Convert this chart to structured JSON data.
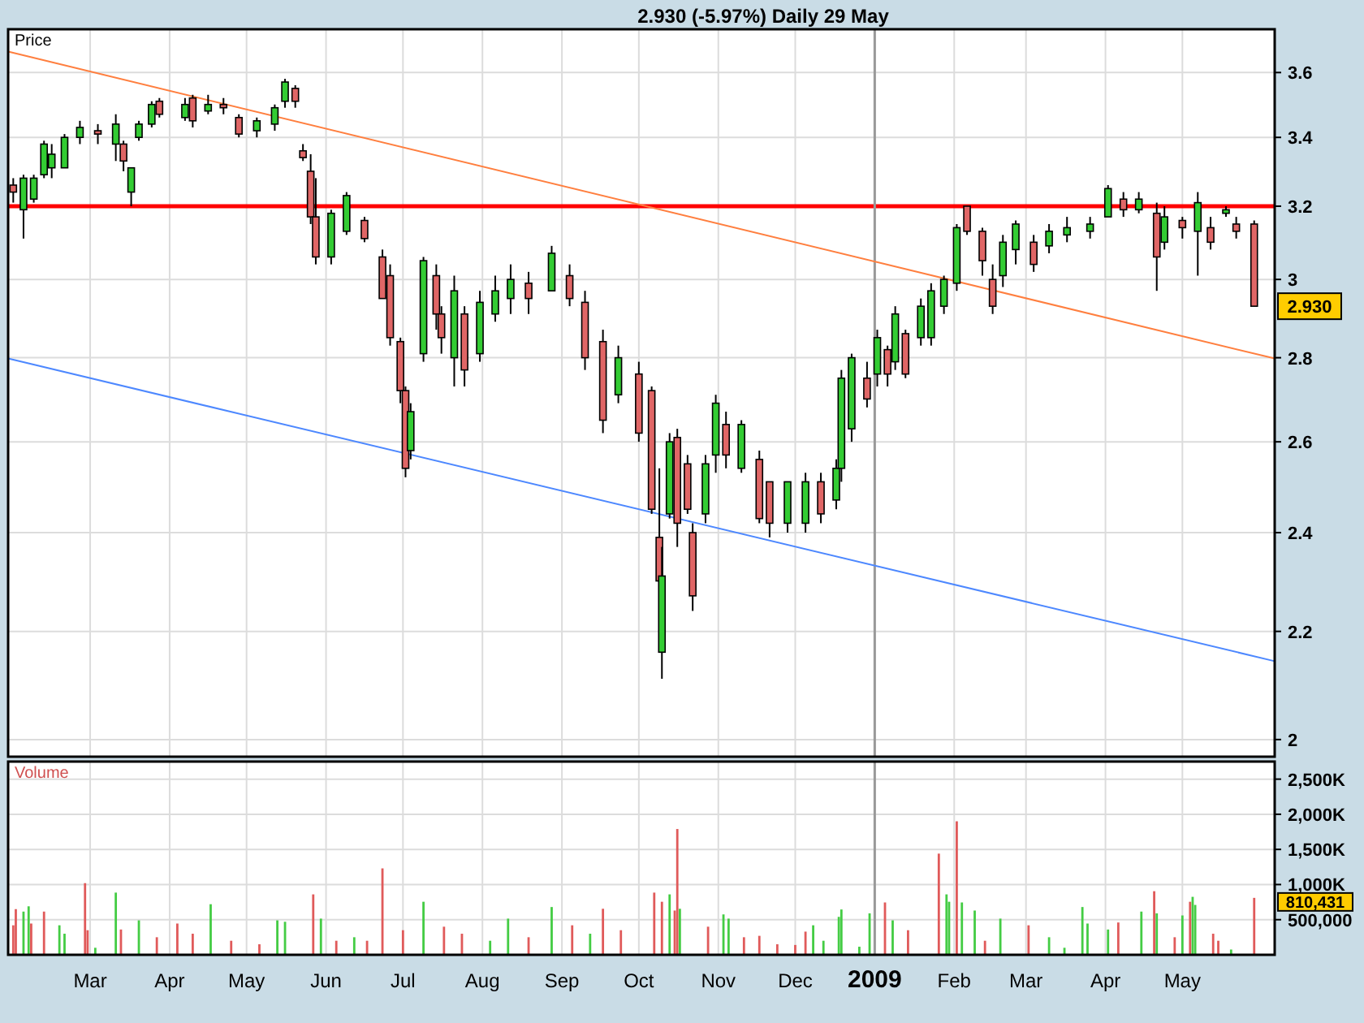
{
  "chart_data": [
    {
      "type": "candlestick",
      "title": "2.930 (-5.97%) Daily 29 May",
      "ylabel": "Price",
      "log": true,
      "grid": true,
      "tick_labels": "y",
      "xlim": [
        "2008-01-29",
        "2009-06-06"
      ],
      "xticks": [
        {
          "value": "2008-03-01",
          "label": null
        },
        {
          "value": "2008-04-01",
          "label": null
        },
        {
          "value": "2008-05-01",
          "label": null
        },
        {
          "value": "2008-06-01",
          "label": null
        },
        {
          "value": "2008-07-01",
          "label": null
        },
        {
          "value": "2008-08-01",
          "label": null
        },
        {
          "value": "2008-09-01",
          "label": null
        },
        {
          "value": "2008-10-01",
          "label": null
        },
        {
          "value": "2008-11-01",
          "label": null
        },
        {
          "value": "2008-12-01",
          "label": null
        },
        {
          "value": "2009-01-01",
          "label": null
        },
        {
          "value": "2009-02-01",
          "label": null
        },
        {
          "value": "2009-03-01",
          "label": null
        },
        {
          "value": "2009-04-01",
          "label": null
        },
        {
          "value": "2009-05-01",
          "label": null
        }
      ],
      "ylim": [
        1.97,
        3.74
      ],
      "yticks": [
        2,
        2.2,
        2.4,
        2.6,
        2.8,
        3,
        3.2,
        3.4,
        3.6
      ],
      "x": [
        "2008-01-31",
        "2008-02-04",
        "2008-02-08",
        "2008-02-12",
        "2008-02-15",
        "2008-02-20",
        "2008-02-26",
        "2008-03-04",
        "2008-03-11",
        "2008-03-14",
        "2008-03-17",
        "2008-03-20",
        "2008-03-25",
        "2008-03-28",
        "2008-04-07",
        "2008-04-10",
        "2008-04-16",
        "2008-04-22",
        "2008-04-28",
        "2008-05-05",
        "2008-05-12",
        "2008-05-16",
        "2008-05-20",
        "2008-05-23",
        "2008-05-26",
        "2008-05-28",
        "2008-06-03",
        "2008-06-09",
        "2008-06-16",
        "2008-06-23",
        "2008-06-26",
        "2008-06-30",
        "2008-07-02",
        "2008-07-04",
        "2008-07-09",
        "2008-07-14",
        "2008-07-16",
        "2008-07-21",
        "2008-07-25",
        "2008-07-31",
        "2008-08-06",
        "2008-08-12",
        "2008-08-19",
        "2008-08-28",
        "2008-09-04",
        "2008-09-10",
        "2008-09-17",
        "2008-09-23",
        "2008-10-01",
        "2008-10-06",
        "2008-10-09",
        "2008-10-10",
        "2008-10-13",
        "2008-10-16",
        "2008-10-20",
        "2008-10-22",
        "2008-10-27",
        "2008-10-31",
        "2008-11-04",
        "2008-11-10",
        "2008-11-17",
        "2008-11-21",
        "2008-11-28",
        "2008-12-05",
        "2008-12-11",
        "2008-12-17",
        "2008-12-19",
        "2008-12-23",
        "2008-12-29",
        "2009-01-02",
        "2009-01-06",
        "2009-01-09",
        "2009-01-13",
        "2009-01-19",
        "2009-01-23",
        "2009-01-28",
        "2009-02-02",
        "2009-02-06",
        "2009-02-12",
        "2009-02-16",
        "2009-02-20",
        "2009-02-25",
        "2009-03-04",
        "2009-03-10",
        "2009-03-17",
        "2009-03-26",
        "2009-04-02",
        "2009-04-08",
        "2009-04-14",
        "2009-04-21",
        "2009-04-24",
        "2009-05-01",
        "2009-05-07",
        "2009-05-12",
        "2009-05-18",
        "2009-05-22",
        "2009-05-29"
      ],
      "ohlc": [
        [
          3.26,
          3.28,
          3.21,
          3.24
        ],
        [
          3.19,
          3.29,
          3.11,
          3.28
        ],
        [
          3.22,
          3.29,
          3.21,
          3.28
        ],
        [
          3.29,
          3.39,
          3.28,
          3.38
        ],
        [
          3.31,
          3.38,
          3.28,
          3.35
        ],
        [
          3.31,
          3.41,
          3.31,
          3.4
        ],
        [
          3.4,
          3.45,
          3.38,
          3.43
        ],
        [
          3.42,
          3.44,
          3.38,
          3.41
        ],
        [
          3.38,
          3.47,
          3.33,
          3.44
        ],
        [
          3.38,
          3.39,
          3.3,
          3.33
        ],
        [
          3.24,
          3.31,
          3.2,
          3.31
        ],
        [
          3.4,
          3.45,
          3.39,
          3.44
        ],
        [
          3.44,
          3.51,
          3.43,
          3.5
        ],
        [
          3.51,
          3.52,
          3.46,
          3.47
        ],
        [
          3.46,
          3.52,
          3.45,
          3.5
        ],
        [
          3.52,
          3.53,
          3.43,
          3.45
        ],
        [
          3.48,
          3.53,
          3.47,
          3.5
        ],
        [
          3.5,
          3.52,
          3.47,
          3.49
        ],
        [
          3.46,
          3.47,
          3.4,
          3.41
        ],
        [
          3.42,
          3.46,
          3.4,
          3.45
        ],
        [
          3.44,
          3.5,
          3.42,
          3.49
        ],
        [
          3.51,
          3.58,
          3.49,
          3.57
        ],
        [
          3.55,
          3.56,
          3.49,
          3.51
        ],
        [
          3.36,
          3.38,
          3.33,
          3.34
        ],
        [
          3.3,
          3.35,
          3.15,
          3.17
        ],
        [
          3.17,
          3.28,
          3.04,
          3.06
        ],
        [
          3.06,
          3.19,
          3.04,
          3.18
        ],
        [
          3.13,
          3.24,
          3.12,
          3.23
        ],
        [
          3.16,
          3.17,
          3.1,
          3.11
        ],
        [
          3.06,
          3.08,
          2.95,
          2.95
        ],
        [
          3.01,
          3.04,
          2.83,
          2.85
        ],
        [
          2.84,
          2.85,
          2.69,
          2.72
        ],
        [
          2.72,
          2.73,
          2.52,
          2.54
        ],
        [
          2.58,
          2.69,
          2.56,
          2.67
        ],
        [
          2.81,
          3.06,
          2.79,
          3.05
        ],
        [
          3.01,
          3.04,
          2.87,
          2.91
        ],
        [
          2.91,
          2.93,
          2.81,
          2.85
        ],
        [
          2.8,
          3.01,
          2.73,
          2.97
        ],
        [
          2.91,
          2.93,
          2.73,
          2.77
        ],
        [
          2.81,
          2.97,
          2.79,
          2.94
        ],
        [
          2.91,
          3.01,
          2.89,
          2.97
        ],
        [
          2.95,
          3.04,
          2.91,
          3.0
        ],
        [
          2.99,
          3.02,
          2.91,
          2.95
        ],
        [
          2.97,
          3.09,
          2.97,
          3.07
        ],
        [
          3.01,
          3.04,
          2.93,
          2.95
        ],
        [
          2.94,
          2.97,
          2.77,
          2.8
        ],
        [
          2.84,
          2.87,
          2.62,
          2.65
        ],
        [
          2.71,
          2.83,
          2.69,
          2.8
        ],
        [
          2.76,
          2.79,
          2.6,
          2.62
        ],
        [
          2.72,
          2.73,
          2.44,
          2.45
        ],
        [
          2.39,
          2.54,
          2.25,
          2.3
        ],
        [
          2.16,
          2.37,
          2.11,
          2.31
        ],
        [
          2.44,
          2.62,
          2.43,
          2.6
        ],
        [
          2.61,
          2.63,
          2.37,
          2.42
        ],
        [
          2.55,
          2.57,
          2.44,
          2.45
        ],
        [
          2.4,
          2.42,
          2.24,
          2.27
        ],
        [
          2.44,
          2.57,
          2.42,
          2.55
        ],
        [
          2.57,
          2.71,
          2.53,
          2.69
        ],
        [
          2.64,
          2.67,
          2.54,
          2.57
        ],
        [
          2.54,
          2.65,
          2.53,
          2.64
        ],
        [
          2.56,
          2.58,
          2.42,
          2.43
        ],
        [
          2.51,
          2.51,
          2.39,
          2.42
        ],
        [
          2.42,
          2.51,
          2.4,
          2.51
        ],
        [
          2.42,
          2.53,
          2.4,
          2.51
        ],
        [
          2.51,
          2.53,
          2.42,
          2.44
        ],
        [
          2.47,
          2.56,
          2.45,
          2.54
        ],
        [
          2.54,
          2.77,
          2.51,
          2.75
        ],
        [
          2.63,
          2.81,
          2.6,
          2.8
        ],
        [
          2.75,
          2.79,
          2.68,
          2.7
        ],
        [
          2.76,
          2.87,
          2.73,
          2.85
        ],
        [
          2.82,
          2.83,
          2.73,
          2.76
        ],
        [
          2.79,
          2.93,
          2.77,
          2.91
        ],
        [
          2.86,
          2.87,
          2.75,
          2.76
        ],
        [
          2.85,
          2.95,
          2.83,
          2.93
        ],
        [
          2.85,
          2.99,
          2.83,
          2.97
        ],
        [
          2.93,
          3.01,
          2.91,
          3.0
        ],
        [
          2.99,
          3.15,
          2.97,
          3.14
        ],
        [
          3.2,
          3.2,
          3.12,
          3.13
        ],
        [
          3.13,
          3.14,
          3.01,
          3.05
        ],
        [
          3.0,
          3.04,
          2.91,
          2.93
        ],
        [
          3.01,
          3.12,
          2.98,
          3.1
        ],
        [
          3.08,
          3.16,
          3.04,
          3.15
        ],
        [
          3.1,
          3.12,
          3.02,
          3.04
        ],
        [
          3.09,
          3.15,
          3.07,
          3.13
        ],
        [
          3.12,
          3.17,
          3.1,
          3.14
        ],
        [
          3.13,
          3.17,
          3.11,
          3.15
        ],
        [
          3.17,
          3.26,
          3.17,
          3.25
        ],
        [
          3.22,
          3.24,
          3.17,
          3.19
        ],
        [
          3.19,
          3.24,
          3.18,
          3.22
        ],
        [
          3.18,
          3.21,
          2.97,
          3.06
        ],
        [
          3.1,
          3.2,
          3.08,
          3.17
        ],
        [
          3.16,
          3.17,
          3.11,
          3.14
        ],
        [
          3.13,
          3.24,
          3.01,
          3.21
        ],
        [
          3.14,
          3.17,
          3.08,
          3.1
        ],
        [
          3.18,
          3.2,
          3.17,
          3.19
        ],
        [
          3.15,
          3.17,
          3.11,
          3.13
        ],
        [
          3.15,
          3.16,
          2.93,
          2.93
        ]
      ],
      "series": [
        {
          "type": "line",
          "color": "#ff7f3f",
          "x": [
            "2008-01-29",
            "2009-06-06"
          ],
          "values": [
            3.667,
            2.798
          ]
        },
        {
          "type": "line",
          "color": "#4d88ff",
          "x": [
            "2008-01-29",
            "2009-06-06"
          ],
          "values": [
            2.798,
            2.143
          ]
        }
      ],
      "ref_lines": [
        {
          "axis": "y",
          "value": 3.2,
          "color": "#ff0000"
        },
        {
          "axis": "x",
          "value": "2009-01-01",
          "color": "#999999"
        }
      ],
      "annotations": [
        {
          "text": "2.930",
          "x": "2009-05-29",
          "y": 2.93
        }
      ]
    },
    {
      "type": "bar",
      "ylabel": "Volume",
      "grid": true,
      "xlim": [
        "2008-01-29",
        "2009-06-06"
      ],
      "xticks": [
        {
          "value": "2008-03-01",
          "label": "Mar"
        },
        {
          "value": "2008-04-01",
          "label": "Apr"
        },
        {
          "value": "2008-05-01",
          "label": "May"
        },
        {
          "value": "2008-06-01",
          "label": "Jun"
        },
        {
          "value": "2008-07-01",
          "label": "Jul"
        },
        {
          "value": "2008-08-01",
          "label": "Aug"
        },
        {
          "value": "2008-09-01",
          "label": "Sep"
        },
        {
          "value": "2008-10-01",
          "label": "Oct"
        },
        {
          "value": "2008-11-01",
          "label": "Nov"
        },
        {
          "value": "2008-12-01",
          "label": "Dec"
        },
        {
          "value": "2009-01-01",
          "label": "2009"
        },
        {
          "value": "2009-02-01",
          "label": "Feb"
        },
        {
          "value": "2009-03-01",
          "label": "Mar"
        },
        {
          "value": "2009-04-01",
          "label": "Apr"
        },
        {
          "value": "2009-05-01",
          "label": "May"
        }
      ],
      "ylim": [
        0,
        2750000
      ],
      "yticks": [
        {
          "value": 500000,
          "label": "500,000"
        },
        {
          "value": 1000000,
          "label": "1,000K"
        },
        {
          "value": 1500000,
          "label": "1,500K"
        },
        {
          "value": 2000000,
          "label": "2,000K"
        },
        {
          "value": 2500000,
          "label": "2,500K"
        }
      ],
      "x": [
        "2008-01-31",
        "2008-02-01",
        "2008-02-04",
        "2008-02-06",
        "2008-02-07",
        "2008-02-12",
        "2008-02-18",
        "2008-02-20",
        "2008-02-28",
        "2008-02-29",
        "2008-03-03",
        "2008-03-11",
        "2008-03-13",
        "2008-03-20",
        "2008-03-27",
        "2008-04-04",
        "2008-04-10",
        "2008-04-17",
        "2008-04-25",
        "2008-05-06",
        "2008-05-13",
        "2008-05-16",
        "2008-05-27",
        "2008-05-30",
        "2008-06-05",
        "2008-06-12",
        "2008-06-17",
        "2008-06-23",
        "2008-07-01",
        "2008-07-09",
        "2008-07-17",
        "2008-07-24",
        "2008-08-04",
        "2008-08-11",
        "2008-08-19",
        "2008-08-28",
        "2008-09-05",
        "2008-09-12",
        "2008-09-17",
        "2008-09-24",
        "2008-10-07",
        "2008-10-10",
        "2008-10-13",
        "2008-10-15",
        "2008-10-16",
        "2008-10-17",
        "2008-10-28",
        "2008-11-03",
        "2008-11-05",
        "2008-11-11",
        "2008-11-17",
        "2008-11-24",
        "2008-12-01",
        "2008-12-05",
        "2008-12-08",
        "2008-12-12",
        "2008-12-18",
        "2008-12-19",
        "2008-12-26",
        "2008-12-30",
        "2009-01-05",
        "2009-01-08",
        "2009-01-14",
        "2009-01-26",
        "2009-01-29",
        "2009-01-30",
        "2009-02-02",
        "2009-02-04",
        "2009-02-09",
        "2009-02-13",
        "2009-02-19",
        "2009-03-02",
        "2009-03-10",
        "2009-03-16",
        "2009-03-23",
        "2009-03-25",
        "2009-04-02",
        "2009-04-06",
        "2009-04-15",
        "2009-04-20",
        "2009-04-21",
        "2009-04-28",
        "2009-05-01",
        "2009-05-04",
        "2009-05-05",
        "2009-05-06",
        "2009-05-13",
        "2009-05-15",
        "2009-05-20",
        "2009-05-29"
      ],
      "values": [
        420000,
        650000,
        615000,
        690000,
        445000,
        615000,
        420000,
        300000,
        1020000,
        350000,
        100000,
        885000,
        360000,
        490000,
        250000,
        445000,
        300000,
        720000,
        200000,
        150000,
        490000,
        470000,
        860000,
        515000,
        200000,
        250000,
        200000,
        1230000,
        350000,
        755000,
        400000,
        300000,
        200000,
        515000,
        250000,
        680000,
        420000,
        300000,
        655000,
        350000,
        885000,
        755000,
        860000,
        630000,
        1790000,
        655000,
        400000,
        575000,
        515000,
        250000,
        270000,
        150000,
        140000,
        330000,
        420000,
        200000,
        540000,
        645000,
        115000,
        590000,
        745000,
        490000,
        350000,
        1440000,
        860000,
        755000,
        1900000,
        745000,
        630000,
        200000,
        515000,
        420000,
        250000,
        100000,
        680000,
        445000,
        360000,
        460000,
        615000,
        905000,
        590000,
        250000,
        560000,
        755000,
        825000,
        710000,
        300000,
        200000,
        75000,
        810431
      ],
      "colors": [
        "#e05a5a",
        "#e05a5a",
        "#44cc44",
        "#44cc44",
        "#e05a5a",
        "#e05a5a",
        "#44cc44",
        "#44cc44",
        "#e05a5a",
        "#e05a5a",
        "#44cc44",
        "#44cc44",
        "#e05a5a",
        "#44cc44",
        "#e05a5a",
        "#e05a5a",
        "#e05a5a",
        "#44cc44",
        "#e05a5a",
        "#e05a5a",
        "#44cc44",
        "#44cc44",
        "#e05a5a",
        "#44cc44",
        "#e05a5a",
        "#44cc44",
        "#e05a5a",
        "#e05a5a",
        "#e05a5a",
        "#44cc44",
        "#e05a5a",
        "#e05a5a",
        "#44cc44",
        "#44cc44",
        "#e05a5a",
        "#44cc44",
        "#e05a5a",
        "#44cc44",
        "#e05a5a",
        "#e05a5a",
        "#e05a5a",
        "#e05a5a",
        "#44cc44",
        "#e05a5a",
        "#e05a5a",
        "#44cc44",
        "#e05a5a",
        "#44cc44",
        "#44cc44",
        "#e05a5a",
        "#e05a5a",
        "#e05a5a",
        "#e05a5a",
        "#e05a5a",
        "#44cc44",
        "#44cc44",
        "#44cc44",
        "#44cc44",
        "#44cc44",
        "#44cc44",
        "#e05a5a",
        "#44cc44",
        "#e05a5a",
        "#e05a5a",
        "#44cc44",
        "#44cc44",
        "#e05a5a",
        "#44cc44",
        "#44cc44",
        "#e05a5a",
        "#44cc44",
        "#e05a5a",
        "#44cc44",
        "#44cc44",
        "#44cc44",
        "#44cc44",
        "#44cc44",
        "#e05a5a",
        "#44cc44",
        "#e05a5a",
        "#44cc44",
        "#e05a5a",
        "#44cc44",
        "#e05a5a",
        "#44cc44",
        "#44cc44",
        "#e05a5a",
        "#e05a5a",
        "#44cc44",
        "#e05a5a"
      ],
      "ref_lines": [
        {
          "axis": "x",
          "value": "2009-01-01",
          "color": "#999999"
        }
      ],
      "annotations": [
        {
          "text": "810,431",
          "x": "2009-05-29",
          "y": 810431
        }
      ]
    }
  ]
}
